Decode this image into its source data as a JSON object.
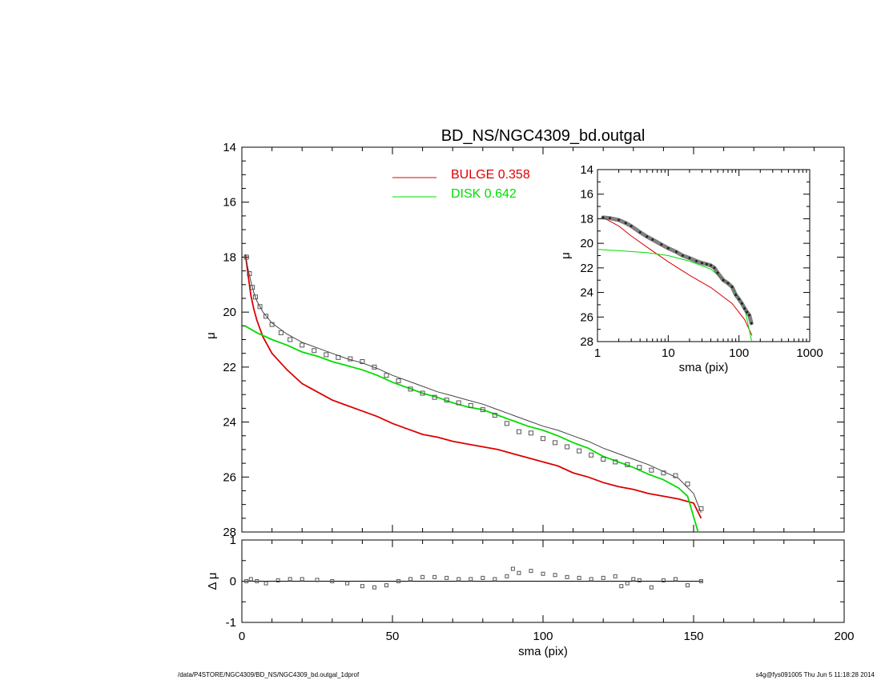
{
  "title": "BD_NS/NGC4309_bd.outgal",
  "footer": {
    "left": "/data/P4STORE/NGC4309/BD_NS/NGC4309_bd.outgal_1dprof",
    "right": "s4g@fys091005  Thu Jun  5 11:18:28 2014"
  },
  "colors": {
    "bulge": "#dd0000",
    "disk": "#00dd00",
    "data": "#555555",
    "axis": "#000000"
  },
  "chart_data": [
    {
      "type": "line",
      "name": "main",
      "xlabel": "sma (pix)",
      "ylabel": "μ",
      "xlim": [
        0,
        200
      ],
      "ylim": [
        28,
        14
      ],
      "x_ticks": [
        "0",
        "50",
        "100",
        "150",
        "200"
      ],
      "y_ticks": [
        "14",
        "16",
        "18",
        "20",
        "22",
        "24",
        "26",
        "28"
      ],
      "legend": [
        {
          "label": "BULGE",
          "value": "0.358",
          "color": "#dd0000"
        },
        {
          "label": "DISK",
          "value": "0.642",
          "color": "#00dd00"
        }
      ],
      "series": [
        {
          "name": "BULGE",
          "x": [
            1.2,
            2,
            3,
            4,
            5,
            7,
            10,
            15,
            20,
            25,
            30,
            35,
            40,
            45,
            50,
            55,
            60,
            65,
            70,
            75,
            80,
            85,
            90,
            95,
            100,
            105,
            110,
            115,
            120,
            125,
            130,
            135,
            140,
            145,
            150,
            152.5
          ],
          "y": [
            17.9,
            18.6,
            19.4,
            19.9,
            20.3,
            20.9,
            21.5,
            22.1,
            22.6,
            22.9,
            23.2,
            23.4,
            23.6,
            23.8,
            24.05,
            24.25,
            24.45,
            24.55,
            24.7,
            24.8,
            24.9,
            25.0,
            25.15,
            25.3,
            25.45,
            25.6,
            25.85,
            26.0,
            26.2,
            26.35,
            26.45,
            26.6,
            26.7,
            26.8,
            26.95,
            27.5
          ]
        },
        {
          "name": "DISK",
          "x": [
            1,
            5,
            10,
            15,
            20,
            25,
            30,
            35,
            40,
            45,
            50,
            55,
            60,
            65,
            70,
            75,
            80,
            85,
            90,
            95,
            100,
            105,
            110,
            115,
            120,
            125,
            130,
            135,
            140,
            145,
            148,
            151.5
          ],
          "y": [
            20.5,
            20.75,
            21.0,
            21.2,
            21.45,
            21.6,
            21.8,
            21.95,
            22.1,
            22.3,
            22.55,
            22.75,
            22.95,
            23.1,
            23.3,
            23.45,
            23.55,
            23.75,
            23.95,
            24.15,
            24.3,
            24.5,
            24.75,
            24.95,
            25.25,
            25.45,
            25.65,
            25.9,
            26.1,
            26.4,
            26.7,
            28.0
          ]
        },
        {
          "name": "model",
          "x": [
            1.2,
            2,
            3,
            4,
            5,
            7,
            10,
            15,
            20,
            25,
            30,
            35,
            40,
            45,
            50,
            55,
            60,
            65,
            70,
            75,
            80,
            85,
            90,
            95,
            100,
            105,
            110,
            115,
            120,
            125,
            130,
            135,
            140,
            145,
            150,
            152.5
          ],
          "y": [
            17.95,
            18.4,
            18.9,
            19.3,
            19.6,
            20.0,
            20.4,
            20.8,
            21.1,
            21.3,
            21.5,
            21.7,
            21.85,
            22.05,
            22.3,
            22.5,
            22.7,
            22.9,
            23.05,
            23.2,
            23.35,
            23.55,
            23.75,
            23.95,
            24.15,
            24.3,
            24.5,
            24.7,
            24.95,
            25.15,
            25.35,
            25.55,
            25.8,
            26.05,
            26.6,
            27.3
          ]
        },
        {
          "name": "data",
          "x": [
            1.5,
            2.5,
            3.5,
            4.5,
            6,
            8,
            10,
            13,
            16,
            20,
            24,
            28,
            32,
            36,
            40,
            44,
            48,
            52,
            56,
            60,
            64,
            68,
            72,
            76,
            80,
            84,
            88,
            92,
            96,
            100,
            104,
            108,
            112,
            116,
            120,
            124,
            128,
            132,
            136,
            140,
            144,
            148,
            152.5
          ],
          "y": [
            18.0,
            18.6,
            19.1,
            19.45,
            19.8,
            20.15,
            20.45,
            20.75,
            21.0,
            21.2,
            21.4,
            21.55,
            21.65,
            21.7,
            21.8,
            22.0,
            22.3,
            22.5,
            22.8,
            22.95,
            23.1,
            23.2,
            23.3,
            23.4,
            23.55,
            23.75,
            24.05,
            24.35,
            24.4,
            24.6,
            24.75,
            24.9,
            25.05,
            25.2,
            25.35,
            25.45,
            25.55,
            25.65,
            25.75,
            25.85,
            25.95,
            26.25,
            27.15
          ]
        }
      ]
    },
    {
      "type": "scatter",
      "name": "residual",
      "xlabel": "sma (pix)",
      "ylabel": "Δ μ",
      "xlim": [
        0,
        200
      ],
      "ylim": [
        -1,
        1
      ],
      "x_ticks": [
        "0",
        "50",
        "100",
        "150",
        "200"
      ],
      "y_ticks": [
        "1",
        "0",
        "-1"
      ],
      "series": [
        {
          "name": "residual",
          "x": [
            1.5,
            3,
            5,
            8,
            12,
            16,
            20,
            25,
            30,
            35,
            40,
            44,
            48,
            52,
            56,
            60,
            64,
            68,
            72,
            76,
            80,
            84,
            88,
            90,
            92,
            96,
            100,
            104,
            108,
            112,
            116,
            120,
            124,
            126,
            128,
            130,
            132,
            136,
            140,
            144,
            148,
            152.5
          ],
          "y": [
            0.0,
            0.05,
            0.0,
            -0.05,
            0.02,
            0.05,
            0.05,
            0.03,
            0.0,
            -0.05,
            -0.12,
            -0.15,
            -0.1,
            0.0,
            0.05,
            0.1,
            0.1,
            0.08,
            0.05,
            0.05,
            0.08,
            0.05,
            0.12,
            0.3,
            0.2,
            0.25,
            0.18,
            0.15,
            0.1,
            0.08,
            0.05,
            0.08,
            0.12,
            -0.12,
            -0.05,
            0.05,
            0.02,
            -0.15,
            0.02,
            0.05,
            -0.1,
            0.0
          ]
        }
      ]
    },
    {
      "type": "line",
      "name": "inset",
      "xlabel": "sma (pix)",
      "ylabel": "μ",
      "xscale": "log",
      "xlim": [
        1,
        1000
      ],
      "ylim": [
        28,
        14
      ],
      "x_ticks": [
        "1",
        "10",
        "100",
        "1000"
      ],
      "y_ticks": [
        "14",
        "16",
        "18",
        "20",
        "22",
        "24",
        "26",
        "28"
      ],
      "series": [
        {
          "name": "BULGE",
          "x": [
            1.2,
            2,
            3,
            5,
            10,
            20,
            40,
            80,
            120,
            152.5
          ],
          "y": [
            17.9,
            18.6,
            19.4,
            20.3,
            21.5,
            22.6,
            23.6,
            24.9,
            26.2,
            27.5
          ]
        },
        {
          "name": "DISK",
          "x": [
            1,
            2,
            5,
            10,
            20,
            40,
            80,
            120,
            151.5
          ],
          "y": [
            20.5,
            20.6,
            20.75,
            21.0,
            21.45,
            22.1,
            23.55,
            25.25,
            28.0
          ]
        },
        {
          "name": "data",
          "x": [
            1.2,
            1.5,
            2,
            2.5,
            3,
            4,
            5,
            6,
            8,
            10,
            13,
            16,
            20,
            25,
            30,
            35,
            40,
            45,
            50,
            60,
            70,
            80,
            90,
            100,
            110,
            120,
            130,
            140,
            150
          ],
          "y": [
            17.9,
            17.95,
            18.1,
            18.35,
            18.6,
            19.1,
            19.45,
            19.7,
            20.1,
            20.4,
            20.7,
            21.0,
            21.2,
            21.45,
            21.6,
            21.7,
            21.8,
            22.0,
            22.4,
            23.0,
            23.25,
            23.55,
            24.2,
            24.55,
            24.9,
            25.3,
            25.6,
            25.85,
            26.5
          ]
        }
      ]
    }
  ]
}
